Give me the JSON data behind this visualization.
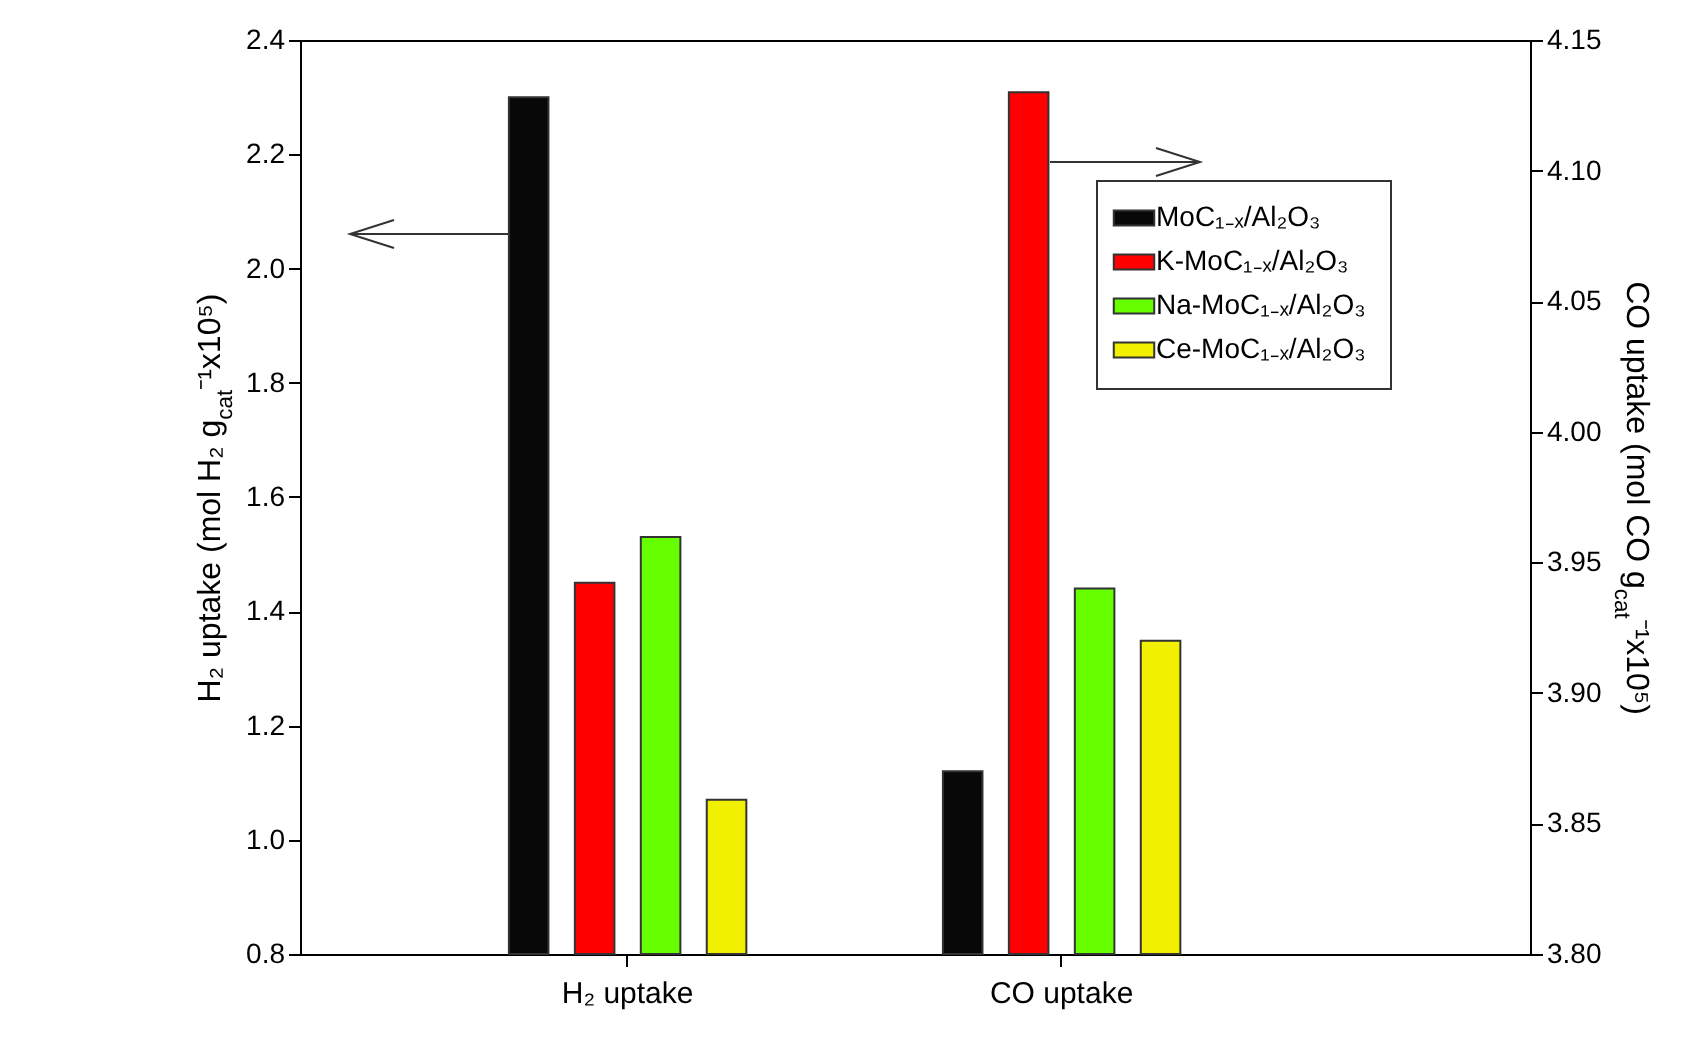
{
  "chart_data": {
    "type": "bar",
    "categories": [
      "H₂ uptake",
      "CO uptake"
    ],
    "ylabel": "H₂ uptake (mol H₂ g$_{cat}$⁻¹x10⁵)",
    "y2label": "CO uptake (mol CO g$_{cat}$⁻¹x10⁵)",
    "ylim": [
      0.8,
      2.4
    ],
    "yticks": [
      0.8,
      {
        "value": 1,
        "label": "1.0"
      },
      1.2,
      1.4,
      1.6,
      1.8,
      {
        "value": 2,
        "label": "2.0"
      },
      2.2,
      2.4
    ],
    "y2lim": [
      3.8,
      4.15
    ],
    "y2ticks": [
      {
        "value": 3.8,
        "label": "3.80"
      },
      3.85,
      {
        "value": 3.9,
        "label": "3.90"
      },
      3.95,
      {
        "value": 4,
        "label": "4.00"
      },
      4.05,
      {
        "value": 4.1,
        "label": "4.10"
      },
      4.15
    ],
    "series": [
      {
        "name": "MoC₁₋ₓ/Al₂O₃",
        "color": "#080808",
        "values": [
          2.3,
          null
        ]
      },
      {
        "name": "K-MoC₁₋ₓ/Al₂O₃",
        "color": "#ff0000",
        "values": [
          1.45,
          null
        ]
      },
      {
        "name": "Na-MoC₁₋ₓ/Al₂O₃",
        "color": "#66ff00",
        "values": [
          1.53,
          null
        ]
      },
      {
        "name": "Ce-MoC₁₋ₓ/Al₂O₃",
        "color": "#f0f000",
        "values": [
          1.07,
          null
        ]
      },
      {
        "axis": "y2",
        "color": "#080808",
        "values": [
          null,
          3.87
        ]
      },
      {
        "axis": "y2",
        "color": "#ff0000",
        "values": [
          null,
          4.13
        ]
      },
      {
        "axis": "y2",
        "color": "#66ff00",
        "values": [
          null,
          3.94
        ]
      },
      {
        "axis": "y2",
        "color": "#f0f000",
        "values": [
          null,
          3.92
        ]
      }
    ],
    "legend": "top right",
    "grid": false
  }
}
